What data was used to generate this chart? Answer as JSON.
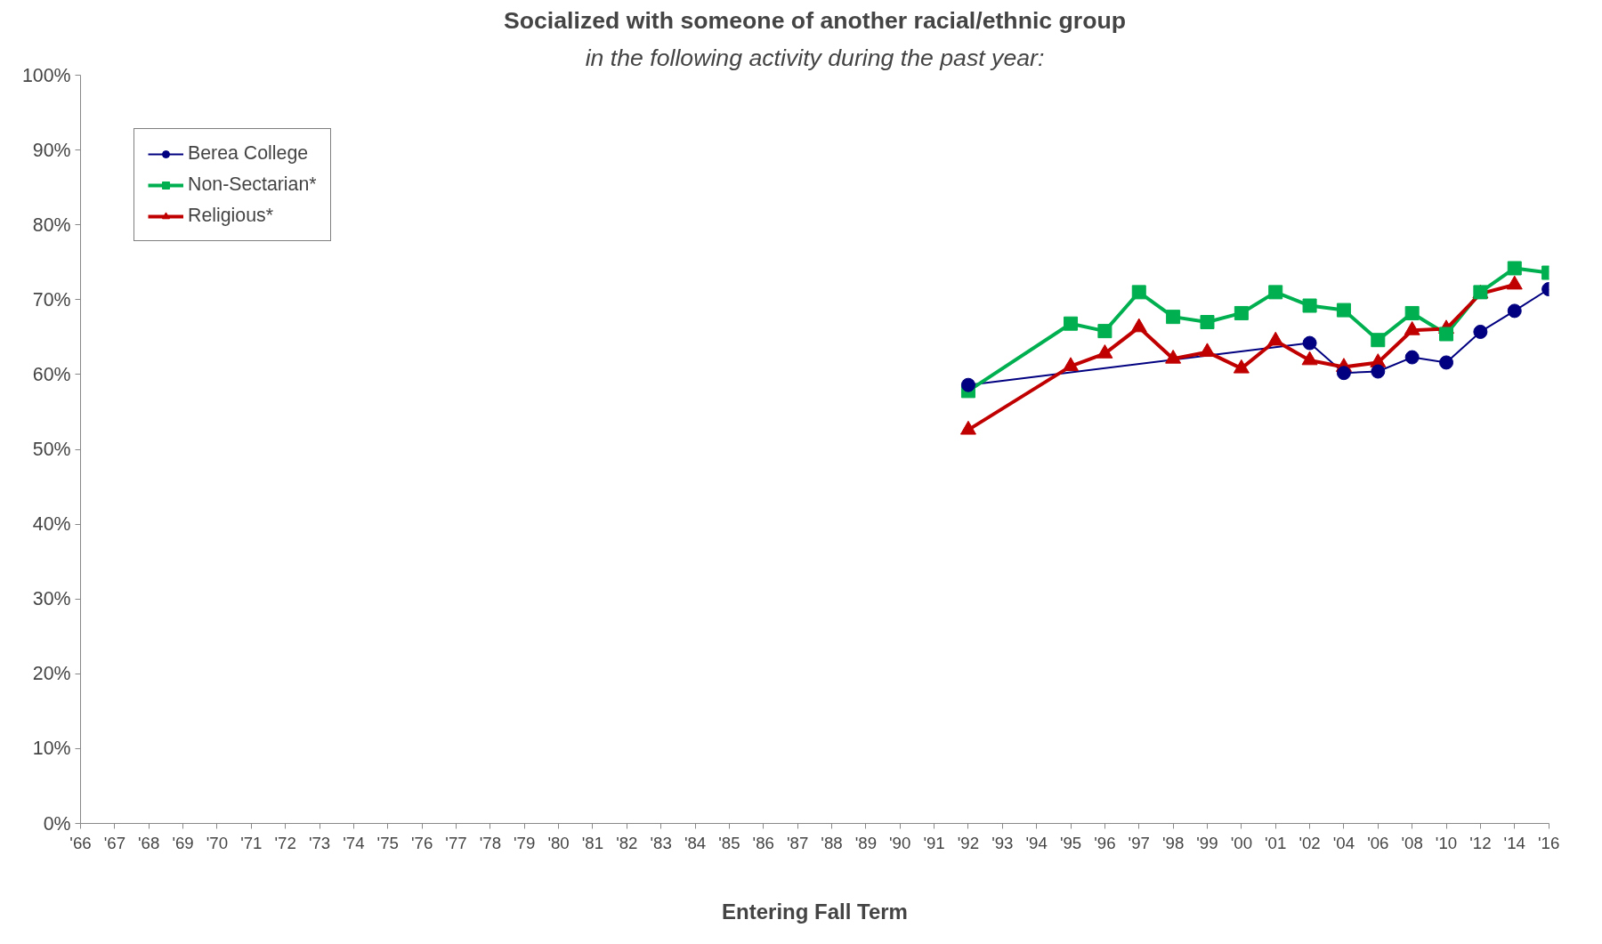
{
  "chart_data": {
    "type": "line",
    "subtitle": "in the following activity during the past year:",
    "title": "Socialized with someone of another racial/ethnic group",
    "xlabel": "Entering Fall Term",
    "categories": [
      "'66",
      "'67",
      "'68",
      "'69",
      "'70",
      "'71",
      "'72",
      "'73",
      "'74",
      "'75",
      "'76",
      "'77",
      "'78",
      "'79",
      "'80",
      "'81",
      "'82",
      "'83",
      "'84",
      "'85",
      "'86",
      "'87",
      "'88",
      "'89",
      "'90",
      "'91",
      "'92",
      "'93",
      "'94",
      "'95",
      "'96",
      "'97",
      "'98",
      "'99",
      "'00",
      "'01",
      "'02",
      "'04",
      "'06",
      "'08",
      "'10",
      "'12",
      "'14",
      "'16"
    ],
    "series": [
      {
        "name": "Berea College",
        "color": "#000080",
        "marker": "circle",
        "values": [
          null,
          null,
          null,
          null,
          null,
          null,
          null,
          null,
          null,
          null,
          null,
          null,
          null,
          null,
          null,
          null,
          null,
          null,
          null,
          null,
          null,
          null,
          null,
          null,
          null,
          null,
          58.6,
          null,
          null,
          null,
          null,
          null,
          null,
          null,
          null,
          null,
          64.2,
          60.2,
          60.4,
          62.3,
          61.6,
          65.7,
          68.5,
          71.4
        ]
      },
      {
        "name": "Non-Sectarian*",
        "color": "#00b050",
        "marker": "square",
        "values": [
          null,
          null,
          null,
          null,
          null,
          null,
          null,
          null,
          null,
          null,
          null,
          null,
          null,
          null,
          null,
          null,
          null,
          null,
          null,
          null,
          null,
          null,
          null,
          null,
          null,
          null,
          57.8,
          null,
          null,
          66.8,
          65.8,
          71.0,
          67.7,
          67.0,
          68.2,
          71.0,
          69.2,
          68.6,
          64.6,
          68.2,
          65.4,
          71.0,
          74.2,
          73.6
        ]
      },
      {
        "name": "Religious*",
        "color": "#c00000",
        "marker": "triangle",
        "values": [
          null,
          null,
          null,
          null,
          null,
          null,
          null,
          null,
          null,
          null,
          null,
          null,
          null,
          null,
          null,
          null,
          null,
          null,
          null,
          null,
          null,
          null,
          null,
          null,
          null,
          null,
          52.6,
          null,
          null,
          61.1,
          62.8,
          66.3,
          62.1,
          63.0,
          60.8,
          64.5,
          61.9,
          61.0,
          61.6,
          65.9,
          66.1,
          70.8,
          72.0,
          null
        ]
      }
    ],
    "ylim": [
      0,
      100
    ],
    "yticks": [
      {
        "value": 0,
        "label": "0%"
      },
      {
        "value": 10,
        "label": "10%"
      },
      {
        "value": 20,
        "label": "20%"
      },
      {
        "value": 30,
        "label": "30%"
      },
      {
        "value": 40,
        "label": "40%"
      },
      {
        "value": 50,
        "label": "50%"
      },
      {
        "value": 60,
        "label": "60%"
      },
      {
        "value": 70,
        "label": "70%"
      },
      {
        "value": 80,
        "label": "80%"
      },
      {
        "value": 90,
        "label": "90%"
      },
      {
        "value": 100,
        "label": "100%"
      }
    ],
    "grid": false,
    "legend": "top left"
  }
}
